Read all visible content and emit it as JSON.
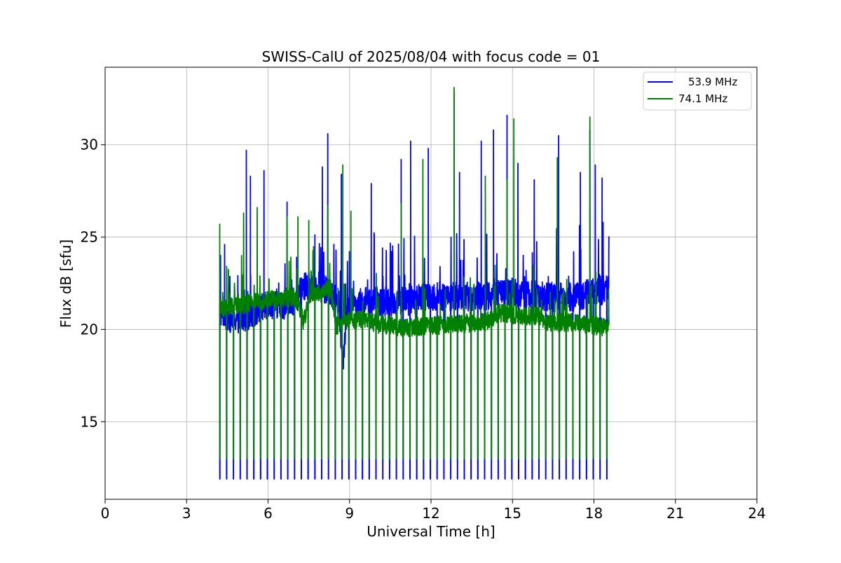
{
  "chart_data": {
    "type": "line",
    "title": "SWISS-CalU of 2025/08/04 with focus code = 01",
    "xlabel": "Universal Time [h]",
    "ylabel": "Flux dB [sfu]",
    "xlim": [
      0,
      24
    ],
    "ylim": [
      10.8,
      34.2
    ],
    "xticks": [
      0,
      3,
      6,
      9,
      12,
      15,
      18,
      21,
      24
    ],
    "xtick_labels": [
      "0",
      "3",
      "6",
      "9",
      "12",
      "15",
      "18",
      "21",
      "24"
    ],
    "yticks": [
      15,
      20,
      25,
      30
    ],
    "ytick_labels": [
      "15",
      "20",
      "25",
      "30"
    ],
    "grid": true,
    "legend_position": "top-right",
    "data_range_x": [
      4.22,
      18.55
    ],
    "calibration_period_h": 0.25,
    "series": [
      {
        "name": "53.9 MHz",
        "color": "#0000ff",
        "baseline_points": [
          [
            4.22,
            21.0
          ],
          [
            4.6,
            20.6
          ],
          [
            5.0,
            20.6
          ],
          [
            5.5,
            20.9
          ],
          [
            6.0,
            21.4
          ],
          [
            6.5,
            21.3
          ],
          [
            7.0,
            21.6
          ],
          [
            7.3,
            22.3
          ],
          [
            7.8,
            22.4
          ],
          [
            8.3,
            21.9
          ],
          [
            8.6,
            21.5
          ],
          [
            8.75,
            18.2
          ],
          [
            8.9,
            21.0
          ],
          [
            9.5,
            21.5
          ],
          [
            10.0,
            21.5
          ],
          [
            11.0,
            21.5
          ],
          [
            12.0,
            21.8
          ],
          [
            13.0,
            21.8
          ],
          [
            14.0,
            21.8
          ],
          [
            15.0,
            22.0
          ],
          [
            16.0,
            21.8
          ],
          [
            17.0,
            21.7
          ],
          [
            18.0,
            22.0
          ],
          [
            18.55,
            22.2
          ]
        ],
        "spike_peaks": [
          [
            4.25,
            24.0
          ],
          [
            4.4,
            24.6
          ],
          [
            5.2,
            29.7
          ],
          [
            5.35,
            28.3
          ],
          [
            5.85,
            28.6
          ],
          [
            6.7,
            26.9
          ],
          [
            8.0,
            28.8
          ],
          [
            8.2,
            30.6
          ],
          [
            8.7,
            28.4
          ],
          [
            9.8,
            27.9
          ],
          [
            10.9,
            29.2
          ],
          [
            11.25,
            30.2
          ],
          [
            11.9,
            29.8
          ],
          [
            12.85,
            32.8
          ],
          [
            13.05,
            28.5
          ],
          [
            13.85,
            30.2
          ],
          [
            14.3,
            30.8
          ],
          [
            14.8,
            31.6
          ],
          [
            15.2,
            29.0
          ],
          [
            15.8,
            28.1
          ],
          [
            16.7,
            30.5
          ],
          [
            17.5,
            28.5
          ],
          [
            17.85,
            30.8
          ],
          [
            18.05,
            28.9
          ],
          [
            18.3,
            28.2
          ]
        ],
        "calibration_low": 11.9
      },
      {
        "name": "74.1 MHz",
        "color": "#008000",
        "baseline_points": [
          [
            4.22,
            21.1
          ],
          [
            5.0,
            21.3
          ],
          [
            5.5,
            21.5
          ],
          [
            6.0,
            21.6
          ],
          [
            6.5,
            21.6
          ],
          [
            7.0,
            21.8
          ],
          [
            7.3,
            20.4
          ],
          [
            7.6,
            22.0
          ],
          [
            8.0,
            22.0
          ],
          [
            8.3,
            22.2
          ],
          [
            8.5,
            20.2
          ],
          [
            9.0,
            20.5
          ],
          [
            9.5,
            20.6
          ],
          [
            10.0,
            20.3
          ],
          [
            11.0,
            20.1
          ],
          [
            12.0,
            20.2
          ],
          [
            13.0,
            20.3
          ],
          [
            14.0,
            20.4
          ],
          [
            14.5,
            20.9
          ],
          [
            15.0,
            20.8
          ],
          [
            16.0,
            20.7
          ],
          [
            16.3,
            20.3
          ],
          [
            17.0,
            20.4
          ],
          [
            18.0,
            20.2
          ],
          [
            18.55,
            20.1
          ]
        ],
        "spike_peaks": [
          [
            4.22,
            25.7
          ],
          [
            5.1,
            26.3
          ],
          [
            5.6,
            26.6
          ],
          [
            6.7,
            26.1
          ],
          [
            7.1,
            26.1
          ],
          [
            7.5,
            25.9
          ],
          [
            8.2,
            26.7
          ],
          [
            8.75,
            28.9
          ],
          [
            9.05,
            26.4
          ],
          [
            10.9,
            26.8
          ],
          [
            11.7,
            29.2
          ],
          [
            12.85,
            33.1
          ],
          [
            14.0,
            28.3
          ],
          [
            14.8,
            28.1
          ],
          [
            15.05,
            31.4
          ],
          [
            16.65,
            29.3
          ],
          [
            17.85,
            31.5
          ]
        ],
        "calibration_low": 13.0
      }
    ]
  }
}
